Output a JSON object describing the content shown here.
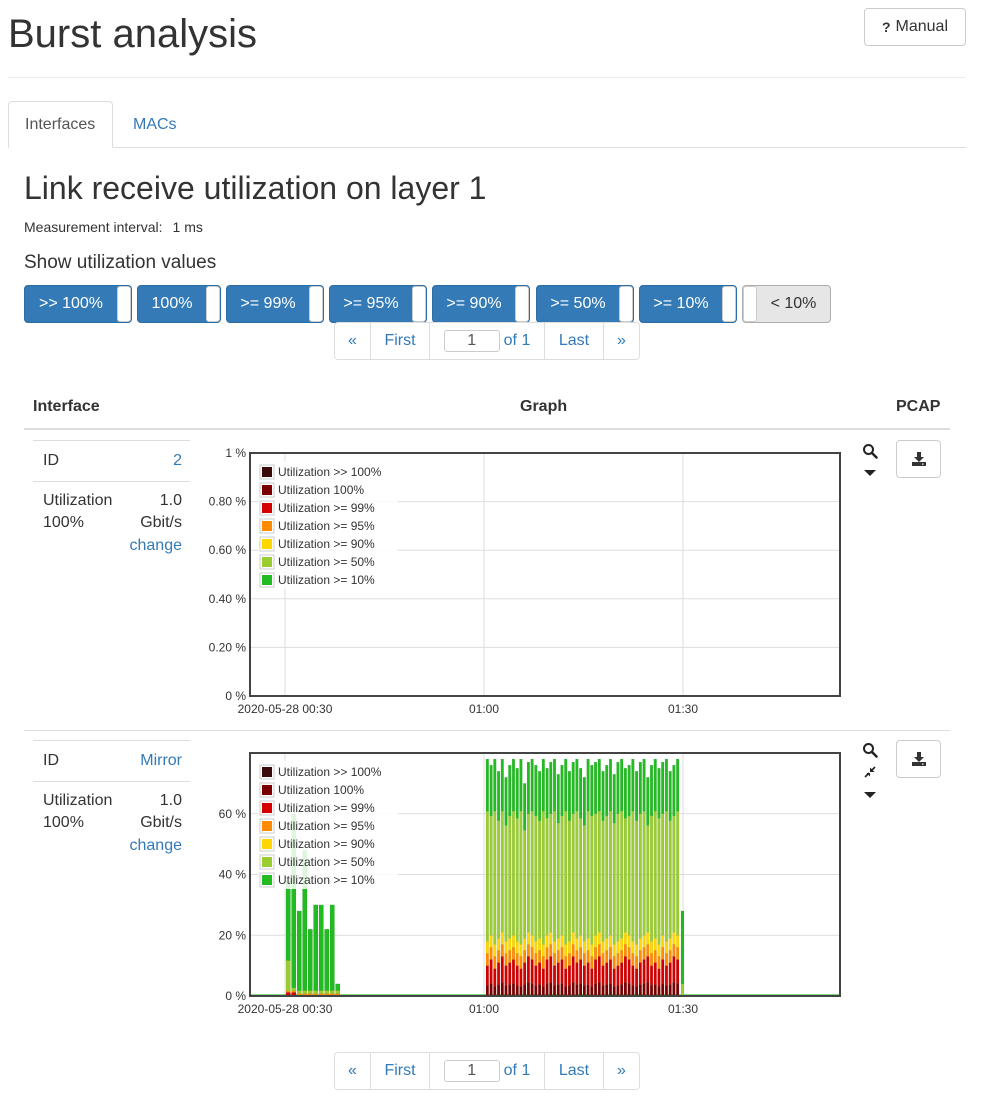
{
  "header": {
    "title": "Burst analysis",
    "manual_label": "Manual",
    "manual_q": "?"
  },
  "tabs": [
    {
      "label": "Interfaces",
      "active": true
    },
    {
      "label": "MACs",
      "active": false
    }
  ],
  "section": {
    "title": "Link receive utilization on layer 1",
    "measurement_label": "Measurement interval:",
    "measurement_value": "1 ms",
    "show_label": "Show utilization values"
  },
  "toggles": [
    {
      "label": ">> 100%",
      "on": true
    },
    {
      "label": "100%",
      "on": true
    },
    {
      "label": ">= 99%",
      "on": true
    },
    {
      "label": ">= 95%",
      "on": true
    },
    {
      "label": ">= 90%",
      "on": true
    },
    {
      "label": ">= 50%",
      "on": true
    },
    {
      "label": ">= 10%",
      "on": true
    },
    {
      "label": "< 10%",
      "on": false
    }
  ],
  "pager": {
    "prev": "«",
    "first": "First",
    "page": "1",
    "of": "of 1",
    "last": "Last",
    "next": "»"
  },
  "table": {
    "col_interface": "Interface",
    "col_graph": "Graph",
    "col_pcap": "PCAP"
  },
  "colors": {
    "util_gt100": "#3b0a0a",
    "util_100": "#7a0000",
    "util_99": "#d40000",
    "util_95": "#ff8c00",
    "util_90": "#ffd700",
    "util_50": "#9acd32",
    "util_10": "#22bb22"
  },
  "icons": {
    "zoom": "search-icon",
    "caret": "caret-down-icon",
    "compress": "compress-icon",
    "download": "download-icon"
  },
  "rows": [
    {
      "id_label": "ID",
      "id_value": "2",
      "util_label1": "Utilization",
      "util_label2": "100%",
      "util_value": "1.0",
      "util_unit": "Gbit/s",
      "change_label": "change",
      "chart_data": {
        "type": "bar",
        "stacked": true,
        "x_tick_labels": [
          "2020-05-28 00:30",
          "01:00",
          "01:30"
        ],
        "y_tick_labels": [
          "1 %",
          "0.80 %",
          "0.60 %",
          "0.40 %",
          "0.20 %",
          "0 %"
        ],
        "ylim": [
          0,
          1
        ],
        "grid": true,
        "legend_position": "top-left",
        "legend": [
          "Utilization >> 100%",
          "Utilization 100%",
          "Utilization >= 99%",
          "Utilization >= 95%",
          "Utilization >= 90%",
          "Utilization >= 50%",
          "Utilization >= 10%"
        ],
        "series": []
      }
    },
    {
      "id_label": "ID",
      "id_value": "Mirror",
      "util_label1": "Utilization",
      "util_label2": "100%",
      "util_value": "1.0",
      "util_unit": "Gbit/s",
      "change_label": "change",
      "chart_data": {
        "type": "bar",
        "stacked": true,
        "x_tick_labels": [
          "2020-05-28 00:30",
          "01:00",
          "01:30"
        ],
        "y_tick_labels": [
          "0 %",
          "20 %",
          "40 %",
          "60 %"
        ],
        "ylim": [
          0,
          80
        ],
        "grid": true,
        "legend_position": "top-left",
        "legend": [
          "Utilization >> 100%",
          "Utilization 100%",
          "Utilization >= 99%",
          "Utilization >= 95%",
          "Utilization >= 90%",
          "Utilization >= 50%",
          "Utilization >= 10%"
        ],
        "series_note_minutes": [
          0,
          2,
          4,
          6,
          8,
          10,
          12,
          14,
          16,
          18
        ],
        "burst1_total": [
          38,
          60,
          28,
          48,
          22,
          30,
          30,
          22,
          30,
          4
        ],
        "burst2_total": [
          78,
          76,
          78,
          74,
          78,
          72,
          76,
          78,
          75,
          78,
          70,
          77,
          78,
          76,
          74,
          78,
          75,
          77,
          78,
          73,
          76,
          78,
          74,
          77,
          78,
          75,
          72,
          78,
          76,
          77,
          78,
          74,
          76,
          78,
          73,
          77,
          78,
          75,
          76,
          78,
          74,
          77,
          78,
          72,
          76,
          78,
          75,
          77,
          78,
          74,
          76,
          78
        ],
        "burst2_ge50_share": 0.78,
        "burst2_ge90": [
          18,
          20,
          17,
          19,
          21,
          18,
          19,
          20,
          18,
          17,
          19,
          21,
          20,
          18,
          19,
          17,
          20,
          21,
          18,
          19,
          20,
          17,
          18,
          21,
          19,
          20,
          18,
          19,
          17,
          20,
          21,
          18,
          19,
          20,
          17,
          18,
          19,
          21,
          20,
          18,
          17,
          19,
          20,
          21,
          18,
          19,
          17,
          20,
          18,
          19,
          21,
          20
        ],
        "burst2_ge99": [
          10,
          12,
          9,
          11,
          13,
          10,
          11,
          12,
          10,
          9,
          11,
          13,
          12,
          10,
          11,
          9,
          12,
          13,
          10,
          11,
          12,
          9,
          10,
          13,
          11,
          12,
          10,
          11,
          9,
          12,
          13,
          10,
          11,
          12,
          9,
          10,
          11,
          13,
          12,
          10,
          9,
          11,
          12,
          13,
          10,
          11,
          9,
          12,
          10,
          11,
          13,
          12
        ],
        "baseline": 0.6
      }
    }
  ]
}
